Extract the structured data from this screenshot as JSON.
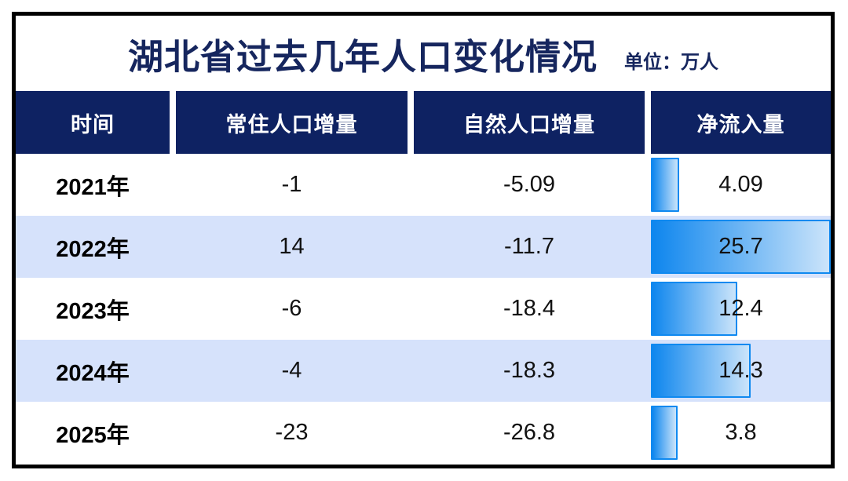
{
  "header": {
    "title": "湖北省过去几年人口变化情况",
    "unit_label": "单位：万人"
  },
  "table": {
    "columns": [
      {
        "label": "时间"
      },
      {
        "label": "常住人口增量"
      },
      {
        "label": "自然人口增量"
      },
      {
        "label": "净流入量"
      }
    ],
    "rows": [
      {
        "year": "2021年",
        "resident": "-1",
        "natural": "-5.09",
        "inflow": "4.09"
      },
      {
        "year": "2022年",
        "resident": "14",
        "natural": "-11.7",
        "inflow": "25.7"
      },
      {
        "year": "2023年",
        "resident": "-6",
        "natural": "-18.4",
        "inflow": "12.4"
      },
      {
        "year": "2024年",
        "resident": "-4",
        "natural": "-18.3",
        "inflow": "14.3"
      },
      {
        "year": "2025年",
        "resident": "-23",
        "natural": "-26.8",
        "inflow": "3.8"
      }
    ]
  },
  "chart_data": {
    "type": "table",
    "title": "湖北省过去几年人口变化情况",
    "unit": "万人",
    "columns": [
      "时间",
      "常住人口增量",
      "自然人口增量",
      "净流入量"
    ],
    "rows": [
      [
        "2021年",
        -1,
        -5.09,
        4.09
      ],
      [
        "2022年",
        14,
        -11.7,
        25.7
      ],
      [
        "2023年",
        -6,
        -18.4,
        12.4
      ],
      [
        "2024年",
        -4,
        -18.3,
        14.3
      ],
      [
        "2025年",
        -23,
        -26.8,
        3.8
      ]
    ],
    "bar_series": {
      "column": "净流入量",
      "values": [
        4.09,
        25.7,
        12.4,
        14.3,
        3.8
      ],
      "max_scale": 25.7,
      "orientation": "horizontal",
      "position": "last-column"
    },
    "layout": {
      "alternating_row_colors": [
        "#FFFFFF",
        "#D6E2FB"
      ],
      "header_background": "#0E2262",
      "outer_border_color": "#000000",
      "grid": false,
      "legend": false
    }
  },
  "colors": {
    "navy_header": "#0E2262",
    "title_text": "#16265E",
    "alt_row_blue": "#D6E2FB",
    "bar_border": "#0F89F0",
    "bar_gradient_start": "#0E86EE",
    "bar_gradient_end": "#CBE4FA",
    "outer_border": "#000000"
  }
}
